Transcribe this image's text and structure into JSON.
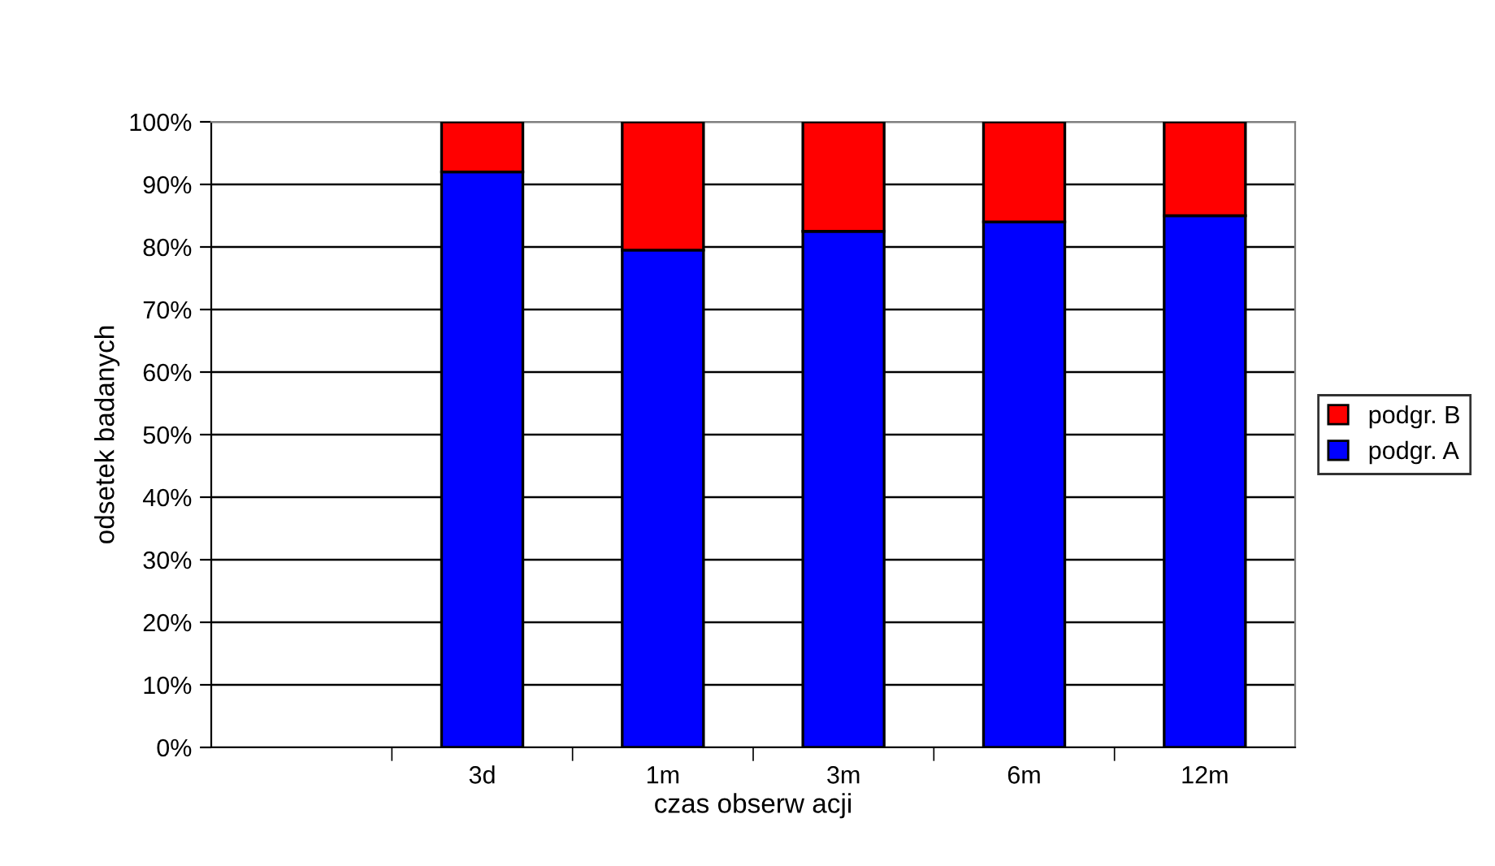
{
  "chart_data": {
    "type": "bar",
    "stacked": true,
    "xlabel": "czas obserw acji",
    "ylabel": "odsetek badanych",
    "categories": [
      null,
      "3d",
      "1m",
      "3m",
      "6m",
      "12m"
    ],
    "series": [
      {
        "name": "podgr. A",
        "color": "#0000ff",
        "values": [
          null,
          92,
          79.5,
          82.5,
          84,
          85
        ]
      },
      {
        "name": "podgr. B",
        "color": "#ff0000",
        "values": [
          null,
          8,
          20.5,
          17.5,
          16,
          15
        ]
      }
    ],
    "ylim": [
      0,
      100
    ],
    "yticks": [
      {
        "value": 0,
        "label": "0%"
      },
      {
        "value": 10,
        "label": "10%"
      },
      {
        "value": 20,
        "label": "20%"
      },
      {
        "value": 30,
        "label": "30%"
      },
      {
        "value": 40,
        "label": "40%"
      },
      {
        "value": 50,
        "label": "50%"
      },
      {
        "value": 60,
        "label": "60%"
      },
      {
        "value": 70,
        "label": "70%"
      },
      {
        "value": 80,
        "label": "80%"
      },
      {
        "value": 90,
        "label": "90%"
      },
      {
        "value": 100,
        "label": "100%"
      }
    ],
    "grid": "y",
    "legend": "right"
  }
}
